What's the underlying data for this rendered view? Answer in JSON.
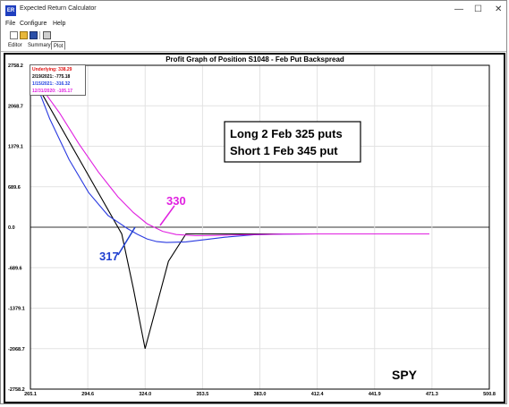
{
  "window": {
    "title": "Expected Return Calculator",
    "icon": "app-logo-icon"
  },
  "controls": {
    "minimize": "—",
    "maximize": "☐",
    "close": "✕"
  },
  "menu": {
    "items": [
      "File",
      "Configure",
      "Help"
    ]
  },
  "toolbar": {
    "icons": [
      "new-icon",
      "open-icon",
      "save-icon",
      "print-icon"
    ]
  },
  "tabs": [
    "Editor",
    "Summary",
    "Plot"
  ],
  "chart_data": {
    "type": "line",
    "title": "Profit Graph of Position S1048 -  Feb Put Backspread",
    "xlim": [
      265.1,
      500.8
    ],
    "ylim": [
      -2758.2,
      2758.2
    ],
    "x_ticks": [
      "265.1",
      "294.6",
      "324.0",
      "353.5",
      "383.0",
      "412.4",
      "441.9",
      "471.3",
      "500.8"
    ],
    "y_ticks": [
      "2758.2",
      "2068.7",
      "1379.1",
      "689.6",
      "0.0",
      "-689.6",
      "-1379.1",
      "-2068.7",
      "-2758.2"
    ],
    "legend": [
      {
        "text": "Underlying: 338.29",
        "color": "#e01010"
      },
      {
        "text": "2/19/2021: -775.18",
        "color": "#000000"
      },
      {
        "text": "1/15/2021: -316.32",
        "color": "#2040e0"
      },
      {
        "text": "12/31/2020: -105.17",
        "color": "#e020e0"
      }
    ],
    "series": [
      {
        "color": "#000000",
        "x": [
          268,
          300,
          312,
          318,
          324,
          330,
          336,
          345,
          350,
          360,
          380,
          412,
          470
        ],
        "y": [
          2450,
          585,
          -115,
          -1045,
          -2070,
          -1325,
          -580,
          -115,
          -115,
          -115,
          -115,
          -115,
          -115
        ]
      },
      {
        "color": "#2a3ae0",
        "x": [
          268,
          275,
          285,
          295,
          305,
          315,
          320,
          325,
          330,
          335,
          345,
          355,
          365,
          380,
          395,
          412,
          470
        ],
        "y": [
          2450,
          1850,
          1150,
          590,
          200,
          -25,
          -120,
          -200,
          -245,
          -260,
          -250,
          -210,
          -170,
          -130,
          -118,
          -115,
          -115
        ]
      },
      {
        "color": "#e020e0",
        "x": [
          268,
          280,
          290,
          300,
          310,
          318,
          325,
          333,
          340,
          350,
          360,
          375,
          395,
          412,
          470
        ],
        "y": [
          2500,
          1950,
          1420,
          940,
          520,
          250,
          60,
          -70,
          -125,
          -145,
          -140,
          -128,
          -118,
          -115,
          -115
        ]
      }
    ],
    "annotations": [
      {
        "text": "330",
        "color": "#e020e0"
      },
      {
        "text": "317",
        "color": "#2040d0"
      },
      {
        "text": "Long 2 Feb 325 puts",
        "color": "#000000"
      },
      {
        "text": "Short 1 Feb 345 put",
        "color": "#000000"
      },
      {
        "text": "SPY",
        "color": "#000000"
      }
    ]
  }
}
